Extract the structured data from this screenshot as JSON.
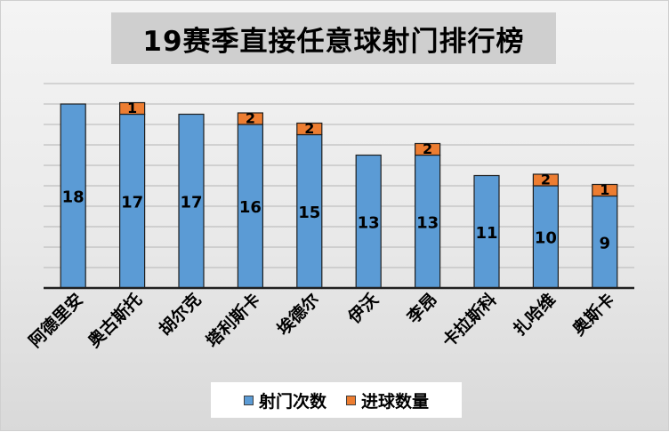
{
  "chart_data": {
    "type": "bar",
    "stacked": true,
    "title": "19赛季直接任意球射门排行榜",
    "categories": [
      "阿德里安",
      "奥古斯托",
      "胡尔克",
      "塔利斯卡",
      "埃德尔",
      "伊沃",
      "李昂",
      "卡拉斯科",
      "扎哈维",
      "奥斯卡"
    ],
    "series": [
      {
        "name": "射门次数",
        "values": [
          18,
          17,
          17,
          16,
          15,
          13,
          13,
          11,
          10,
          9
        ],
        "color": "#5b9bd5"
      },
      {
        "name": "进球数量",
        "values": [
          null,
          1,
          null,
          2,
          2,
          null,
          2,
          null,
          2,
          1
        ],
        "color": "#ed7d31"
      }
    ],
    "ylim": [
      0,
      18
    ],
    "grid": true,
    "legend_position": "bottom"
  }
}
